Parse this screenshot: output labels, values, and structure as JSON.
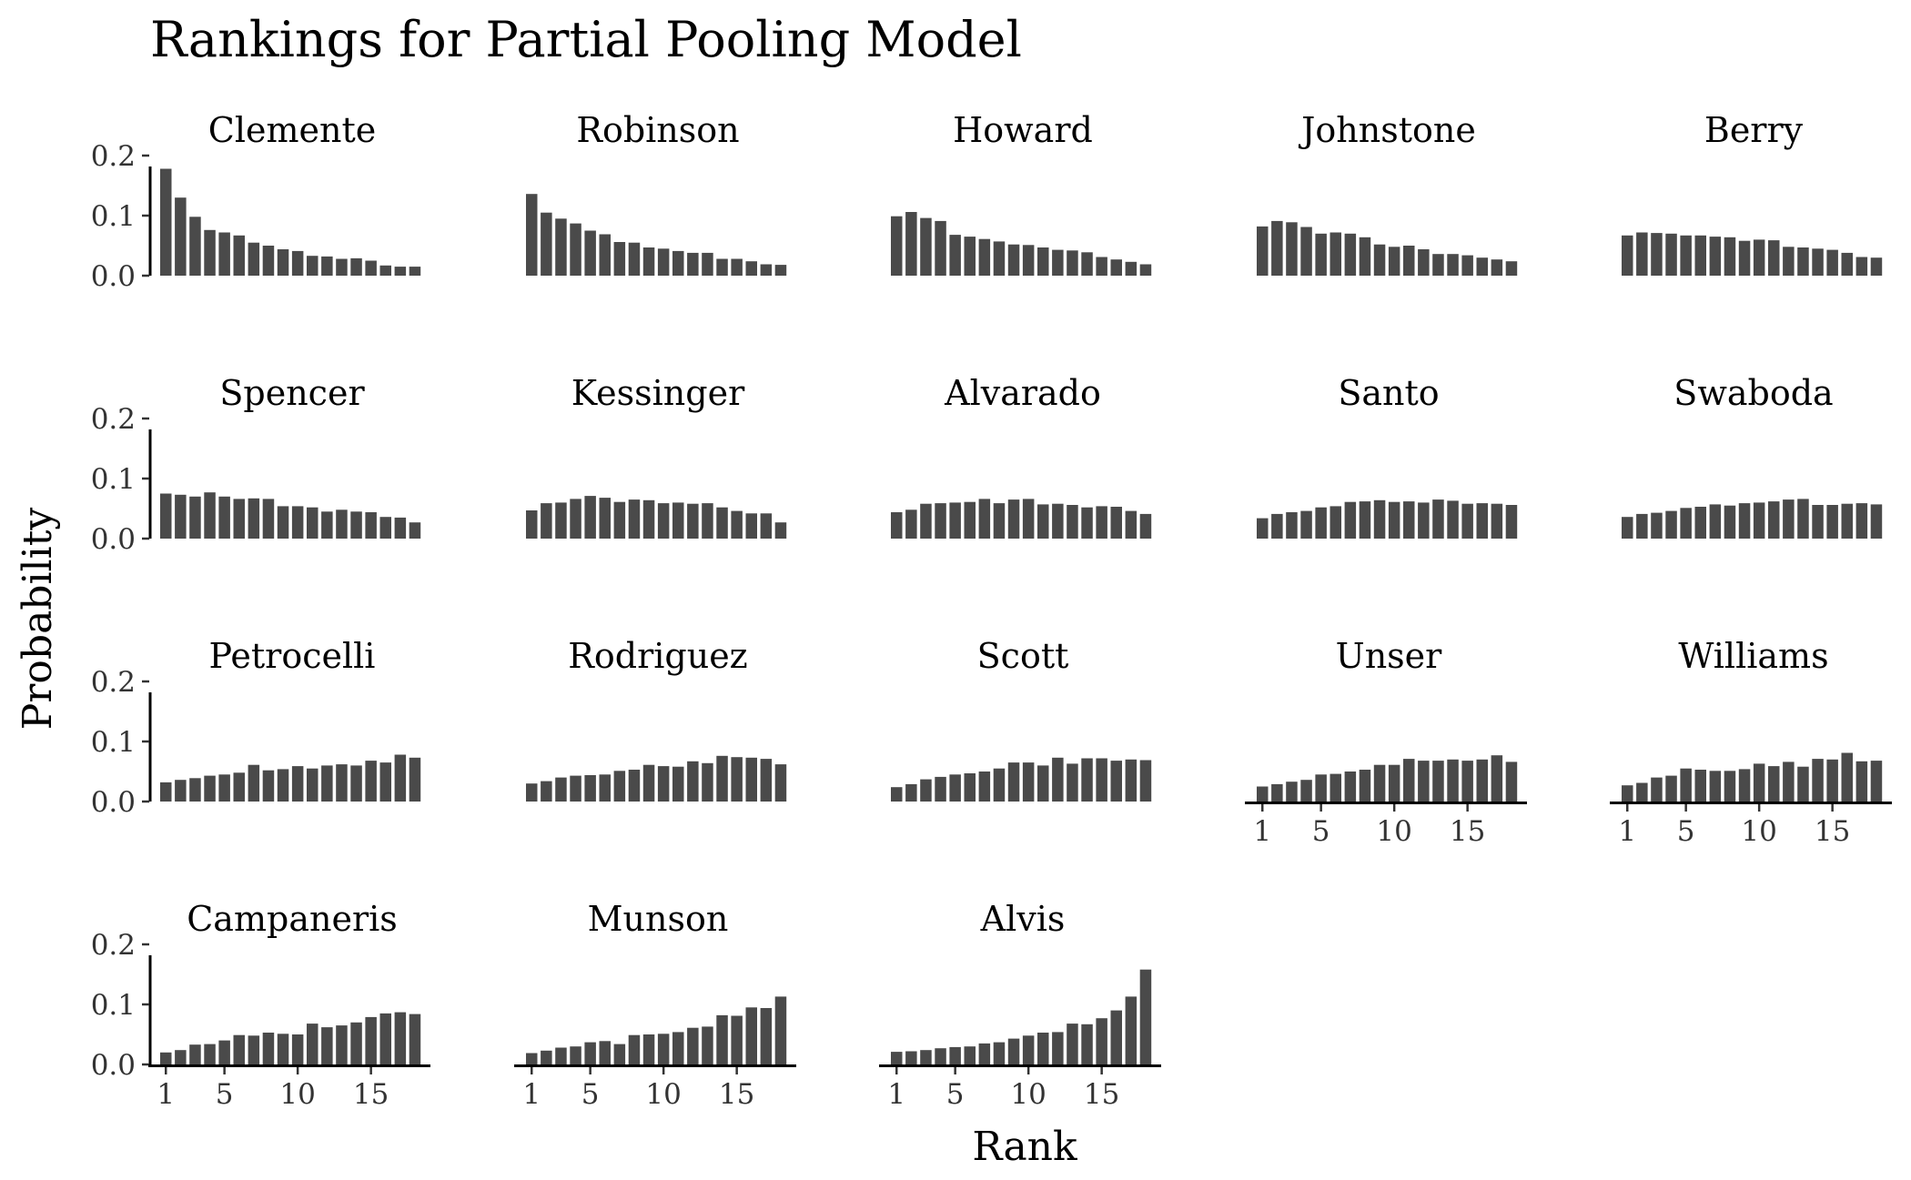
{
  "chart_data": {
    "type": "bar",
    "title": "Rankings for Partial Pooling Model",
    "xlabel": "Rank",
    "ylabel": "Probability",
    "ylim": [
      0,
      0.2
    ],
    "y_ticks": [
      0.0,
      0.1,
      0.2
    ],
    "y_tick_labels": [
      "0.0",
      "0.1",
      "0.2"
    ],
    "x_ticks": [
      1,
      5,
      10,
      15
    ],
    "x_tick_labels": [
      "1",
      "5",
      "10",
      "15"
    ],
    "ranks": [
      1,
      2,
      3,
      4,
      5,
      6,
      7,
      8,
      9,
      10,
      11,
      12,
      13,
      14,
      15,
      16,
      17,
      18
    ],
    "grid": false,
    "legend": "none",
    "layout": {
      "columns": 5,
      "rows": 4
    },
    "bar_color": "#4a4a4a",
    "panels": [
      {
        "name": "Clemente",
        "values": [
          0.178,
          0.13,
          0.098,
          0.076,
          0.072,
          0.067,
          0.055,
          0.05,
          0.044,
          0.041,
          0.033,
          0.032,
          0.028,
          0.029,
          0.025,
          0.017,
          0.015,
          0.015
        ]
      },
      {
        "name": "Robinson",
        "values": [
          0.136,
          0.105,
          0.095,
          0.087,
          0.075,
          0.069,
          0.056,
          0.055,
          0.047,
          0.045,
          0.041,
          0.038,
          0.038,
          0.028,
          0.028,
          0.024,
          0.019,
          0.018
        ]
      },
      {
        "name": "Howard",
        "values": [
          0.099,
          0.106,
          0.096,
          0.091,
          0.068,
          0.065,
          0.061,
          0.057,
          0.052,
          0.051,
          0.047,
          0.043,
          0.042,
          0.039,
          0.031,
          0.027,
          0.023,
          0.019
        ]
      },
      {
        "name": "Johnstone",
        "values": [
          0.082,
          0.091,
          0.089,
          0.081,
          0.07,
          0.072,
          0.07,
          0.064,
          0.052,
          0.048,
          0.05,
          0.044,
          0.036,
          0.036,
          0.034,
          0.03,
          0.027,
          0.024
        ]
      },
      {
        "name": "Berry",
        "values": [
          0.067,
          0.072,
          0.071,
          0.07,
          0.067,
          0.067,
          0.065,
          0.064,
          0.058,
          0.06,
          0.059,
          0.048,
          0.047,
          0.045,
          0.043,
          0.038,
          0.031,
          0.03
        ]
      },
      {
        "name": "Spencer",
        "values": [
          0.075,
          0.073,
          0.07,
          0.077,
          0.07,
          0.066,
          0.067,
          0.066,
          0.054,
          0.054,
          0.052,
          0.045,
          0.048,
          0.045,
          0.044,
          0.036,
          0.035,
          0.027
        ]
      },
      {
        "name": "Kessinger",
        "values": [
          0.047,
          0.059,
          0.06,
          0.066,
          0.071,
          0.068,
          0.061,
          0.065,
          0.064,
          0.059,
          0.06,
          0.058,
          0.059,
          0.052,
          0.046,
          0.042,
          0.042,
          0.027
        ]
      },
      {
        "name": "Alvarado",
        "values": [
          0.044,
          0.048,
          0.058,
          0.059,
          0.06,
          0.061,
          0.066,
          0.059,
          0.065,
          0.066,
          0.057,
          0.058,
          0.056,
          0.052,
          0.054,
          0.053,
          0.046,
          0.041
        ]
      },
      {
        "name": "Santo",
        "values": [
          0.034,
          0.041,
          0.044,
          0.046,
          0.052,
          0.054,
          0.061,
          0.062,
          0.064,
          0.061,
          0.062,
          0.06,
          0.065,
          0.063,
          0.058,
          0.059,
          0.058,
          0.056
        ]
      },
      {
        "name": "Swaboda",
        "values": [
          0.036,
          0.041,
          0.043,
          0.046,
          0.051,
          0.053,
          0.057,
          0.055,
          0.059,
          0.06,
          0.062,
          0.065,
          0.066,
          0.056,
          0.056,
          0.058,
          0.059,
          0.057
        ]
      },
      {
        "name": "Petrocelli",
        "values": [
          0.032,
          0.036,
          0.039,
          0.043,
          0.045,
          0.048,
          0.061,
          0.052,
          0.054,
          0.059,
          0.055,
          0.06,
          0.062,
          0.06,
          0.068,
          0.065,
          0.078,
          0.073
        ]
      },
      {
        "name": "Rodriguez",
        "values": [
          0.03,
          0.034,
          0.04,
          0.043,
          0.044,
          0.045,
          0.051,
          0.053,
          0.061,
          0.059,
          0.058,
          0.067,
          0.064,
          0.076,
          0.074,
          0.073,
          0.071,
          0.062
        ]
      },
      {
        "name": "Scott",
        "values": [
          0.024,
          0.029,
          0.037,
          0.041,
          0.045,
          0.047,
          0.05,
          0.055,
          0.065,
          0.065,
          0.06,
          0.073,
          0.063,
          0.072,
          0.072,
          0.068,
          0.07,
          0.069
        ]
      },
      {
        "name": "Unser",
        "values": [
          0.025,
          0.029,
          0.033,
          0.036,
          0.045,
          0.046,
          0.05,
          0.053,
          0.061,
          0.061,
          0.071,
          0.068,
          0.068,
          0.07,
          0.068,
          0.07,
          0.077,
          0.066
        ]
      },
      {
        "name": "Williams",
        "values": [
          0.027,
          0.031,
          0.04,
          0.043,
          0.055,
          0.053,
          0.051,
          0.051,
          0.054,
          0.063,
          0.059,
          0.066,
          0.058,
          0.071,
          0.07,
          0.081,
          0.067,
          0.068
        ]
      },
      {
        "name": "Campaneris",
        "values": [
          0.02,
          0.024,
          0.033,
          0.034,
          0.04,
          0.049,
          0.048,
          0.053,
          0.051,
          0.05,
          0.068,
          0.062,
          0.065,
          0.07,
          0.079,
          0.085,
          0.087,
          0.084
        ]
      },
      {
        "name": "Munson",
        "values": [
          0.019,
          0.023,
          0.028,
          0.03,
          0.037,
          0.039,
          0.034,
          0.049,
          0.05,
          0.051,
          0.054,
          0.061,
          0.063,
          0.082,
          0.081,
          0.095,
          0.094,
          0.113
        ]
      },
      {
        "name": "Alvis",
        "values": [
          0.021,
          0.022,
          0.024,
          0.027,
          0.029,
          0.03,
          0.035,
          0.037,
          0.043,
          0.048,
          0.053,
          0.054,
          0.068,
          0.067,
          0.077,
          0.09,
          0.113,
          0.158
        ]
      }
    ]
  }
}
